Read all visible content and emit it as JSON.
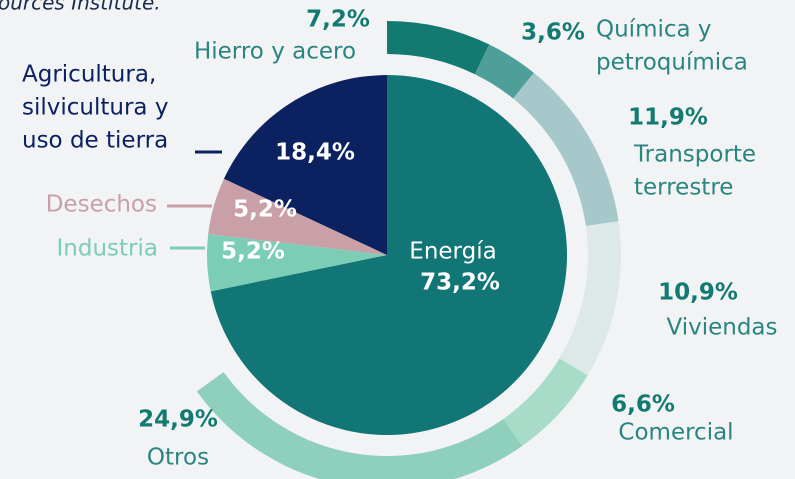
{
  "chart_data": {
    "type": "pie",
    "note": "ources Institute.",
    "categories": [
      [
        "Energía"
      ],
      [
        "Industria"
      ],
      [
        "Desechos"
      ],
      [
        "Agricultura,",
        "silvicultura y",
        "uso de tierra"
      ]
    ],
    "values": [
      73.2,
      5.2,
      5.2,
      18.4
    ],
    "value_labels": [
      "73,2%",
      "5,2%",
      "5,2%",
      "18,4%"
    ],
    "colors": [
      "#127676",
      "#7ccdb5",
      "#c9a0a8",
      "#0c2160"
    ],
    "breakdown": {
      "categories": [
        [
          "Hierro y acero"
        ],
        [
          "Química y",
          "petroquímica"
        ],
        [
          "Transporte",
          "terrestre"
        ],
        [
          "Viviendas"
        ],
        [
          "Comercial"
        ],
        [
          "Otros"
        ]
      ],
      "values": [
        7.2,
        3.6,
        11.9,
        10.9,
        6.6,
        24.9
      ],
      "value_labels": [
        "7,2%",
        "3,6%",
        "11,9%",
        "10,9%",
        "6,6%",
        "24,9%"
      ],
      "colors": [
        "#137a72",
        "#4e9e9a",
        "#a6c8ca",
        "#dde8e9",
        "#a8dcc9",
        "#8fd0bc"
      ]
    }
  }
}
